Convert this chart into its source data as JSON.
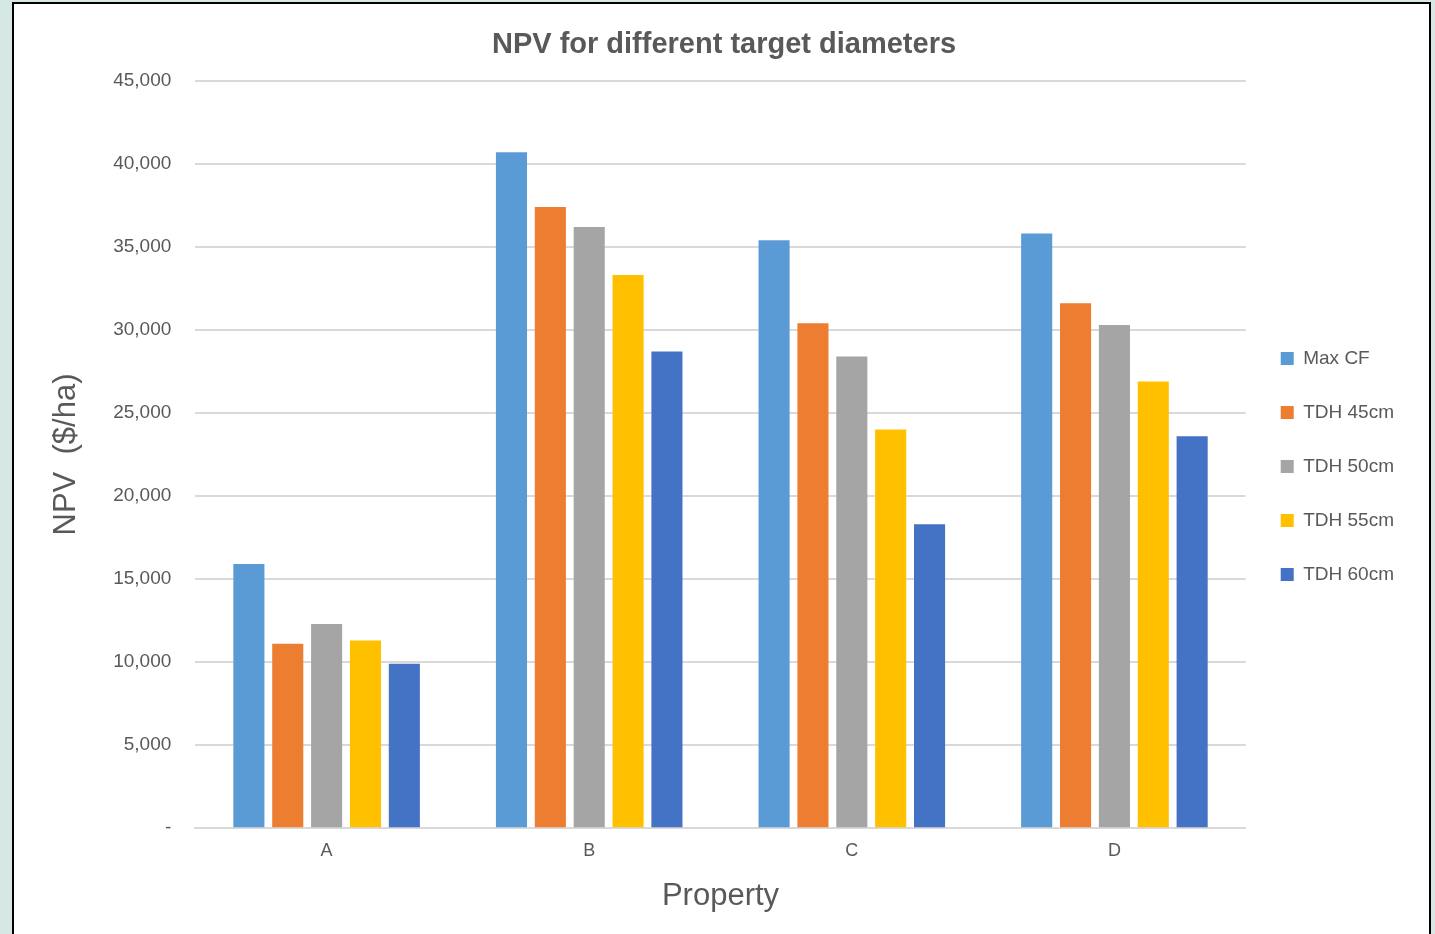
{
  "chart_data": {
    "type": "bar",
    "title": "NPV for different target diameters",
    "xlabel": "Property",
    "ylabel": "NPV  ($/ha)",
    "categories": [
      "A",
      "B",
      "C",
      "D"
    ],
    "series": [
      {
        "name": "Max CF",
        "color": "#5b9bd5",
        "values": [
          15900,
          40700,
          35400,
          35800
        ]
      },
      {
        "name": "TDH 45cm",
        "color": "#ed7d31",
        "values": [
          11100,
          37400,
          30400,
          31600
        ]
      },
      {
        "name": "TDH 50cm",
        "color": "#a5a5a5",
        "values": [
          12300,
          36200,
          28400,
          30300
        ]
      },
      {
        "name": "TDH 55cm",
        "color": "#ffc000",
        "values": [
          11300,
          33300,
          24000,
          26900
        ]
      },
      {
        "name": "TDH 60cm",
        "color": "#4472c4",
        "values": [
          9900,
          28700,
          18300,
          23600
        ]
      }
    ],
    "ylim": [
      0,
      45000
    ],
    "yticks": [
      {
        "value": 0,
        "label": "-"
      },
      {
        "value": 5000,
        "label": "5,000"
      },
      {
        "value": 10000,
        "label": "10,000"
      },
      {
        "value": 15000,
        "label": "15,000"
      },
      {
        "value": 20000,
        "label": "20,000"
      },
      {
        "value": 25000,
        "label": "25,000"
      },
      {
        "value": 30000,
        "label": "30,000"
      },
      {
        "value": 35000,
        "label": "35,000"
      },
      {
        "value": 40000,
        "label": "40,000"
      },
      {
        "value": 45000,
        "label": "45,000"
      }
    ],
    "grid": "y",
    "legend": "right"
  }
}
